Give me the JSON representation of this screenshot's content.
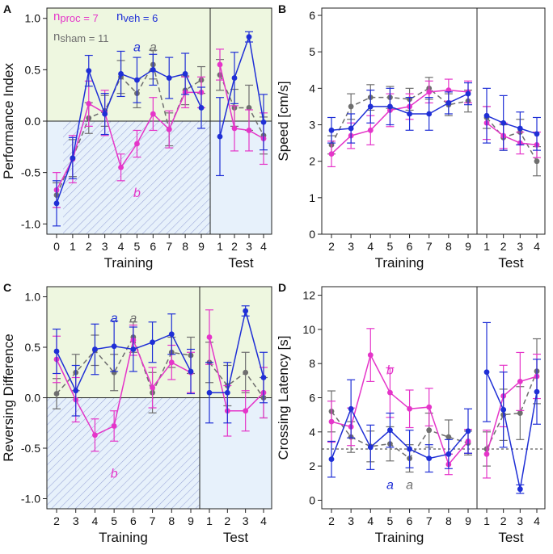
{
  "colors": {
    "proc": "#e535c9",
    "veh": "#1f2fd6",
    "sham": "#6e6e6e",
    "green_bg": "#eef7e0",
    "blue_bg": "#e7f1fb",
    "hatch": "#9aa6d8",
    "axis": "#222222"
  },
  "chart_data": [
    {
      "panel": "A",
      "type": "line",
      "ylabel": "Performance Index",
      "xlabel_training": "Training",
      "xlabel_test": "Test",
      "ylim": [
        -1.1,
        1.1
      ],
      "yticks": [
        -1.0,
        -0.5,
        0.0,
        0.5,
        1.0
      ],
      "ytick_labels": [
        "-1.0",
        "-0.5",
        "0.0",
        "0.5",
        "1.0"
      ],
      "training_x": [
        "0",
        "1",
        "2",
        "3",
        "4",
        "5",
        "6",
        "7",
        "8",
        "9"
      ],
      "test_x": [
        "1",
        "2",
        "3",
        "4"
      ],
      "legend": {
        "proc_prefix": "n",
        "proc": "proc = 7",
        "veh_prefix": "n",
        "veh": "veh = 6",
        "sham_prefix": "n",
        "sham": "sham = 11"
      },
      "annotations": [
        {
          "text": "a",
          "series": "veh",
          "col": 5,
          "value": 0.72
        },
        {
          "text": "a",
          "series": "sham",
          "col": 6,
          "value": 0.72
        },
        {
          "text": "b",
          "series": "proc",
          "col": 5,
          "value": -0.7
        }
      ],
      "shading": "performance",
      "series": [
        {
          "name": "proc",
          "style": "solid",
          "training": [
            -0.67,
            -0.37,
            0.17,
            0.08,
            -0.45,
            -0.22,
            0.07,
            -0.08,
            0.28,
            0.28
          ],
          "training_err": [
            0.17,
            0.23,
            0.22,
            0.22,
            0.13,
            0.13,
            0.16,
            0.18,
            0.15,
            0.15
          ],
          "test": [
            0.55,
            -0.07,
            -0.09,
            -0.17
          ],
          "test_err": [
            0.15,
            0.22,
            0.2,
            0.25
          ]
        },
        {
          "name": "veh",
          "style": "solid",
          "training": [
            -0.8,
            -0.36,
            0.49,
            0.07,
            0.46,
            0.4,
            0.5,
            0.42,
            0.46,
            0.13
          ],
          "training_err": [
            0.22,
            0.2,
            0.15,
            0.2,
            0.22,
            0.22,
            0.15,
            0.2,
            0.2,
            0.2
          ],
          "test": [
            -0.15,
            0.42,
            0.82,
            -0.01
          ],
          "test_err": [
            0.38,
            0.25,
            0.05,
            0.27
          ]
        },
        {
          "name": "sham",
          "style": "dashed",
          "training": [
            -0.72,
            -0.36,
            0.03,
            0.1,
            0.43,
            0.27,
            0.55,
            -0.08,
            0.3,
            0.4
          ],
          "training_err": [
            0.12,
            0.18,
            0.15,
            0.15,
            0.16,
            0.14,
            0.14,
            0.16,
            0.14,
            0.13
          ],
          "test": [
            0.45,
            0.13,
            0.13,
            -0.14
          ],
          "test_err": [
            0.15,
            0.18,
            0.22,
            0.18
          ]
        }
      ]
    },
    {
      "panel": "B",
      "type": "line",
      "ylabel": "Speed [cm/s]",
      "xlabel_training": "Training",
      "xlabel_test": "Test",
      "ylim": [
        0,
        6.2
      ],
      "yticks": [
        0,
        1,
        2,
        3,
        4,
        5,
        6
      ],
      "ytick_labels": [
        "0",
        "1",
        "2",
        "3",
        "4",
        "5",
        "6"
      ],
      "training_x": [
        "2",
        "3",
        "4",
        "5",
        "6",
        "7",
        "8",
        "9"
      ],
      "test_x": [
        "1",
        "2",
        "3",
        "4"
      ],
      "annotations": [],
      "shading": "none",
      "series": [
        {
          "name": "proc",
          "style": "solid",
          "training": [
            2.2,
            2.7,
            2.85,
            3.4,
            3.5,
            3.9,
            3.95,
            3.9
          ],
          "training_err": [
            0.35,
            0.35,
            0.4,
            0.45,
            0.35,
            0.3,
            0.3,
            0.3
          ],
          "test": [
            3.05,
            2.7,
            2.5,
            2.45
          ],
          "test_err": [
            0.45,
            0.35,
            0.3,
            0.35
          ]
        },
        {
          "name": "veh",
          "style": "solid",
          "training": [
            2.85,
            2.9,
            3.5,
            3.5,
            3.3,
            3.3,
            3.6,
            3.85
          ],
          "training_err": [
            0.35,
            0.4,
            0.45,
            0.5,
            0.45,
            0.45,
            0.3,
            0.3
          ],
          "test": [
            3.25,
            3.05,
            2.9,
            2.75
          ],
          "test_err": [
            0.75,
            0.75,
            0.45,
            0.45
          ]
        },
        {
          "name": "sham",
          "style": "dashed",
          "training": [
            2.45,
            3.5,
            3.75,
            3.75,
            3.7,
            4.0,
            3.55,
            3.65
          ],
          "training_err": [
            0.25,
            0.35,
            0.35,
            0.3,
            0.3,
            0.3,
            0.3,
            0.3
          ],
          "test": [
            3.2,
            2.65,
            2.8,
            2.0
          ],
          "test_err": [
            0.3,
            0.35,
            0.35,
            0.4
          ]
        }
      ]
    },
    {
      "panel": "C",
      "type": "line",
      "ylabel": "Reversing Difference",
      "xlabel_training": "Training",
      "xlabel_test": "Test",
      "ylim": [
        -1.1,
        1.1
      ],
      "yticks": [
        -1.0,
        -0.5,
        0.0,
        0.5,
        1.0
      ],
      "ytick_labels": [
        "-1.0",
        "-0.5",
        "0.0",
        "0.5",
        "1.0"
      ],
      "training_x": [
        "2",
        "3",
        "4",
        "5",
        "6",
        "7",
        "8",
        "9"
      ],
      "test_x": [
        "1",
        "2",
        "3",
        "4"
      ],
      "annotations": [
        {
          "text": "a",
          "series": "veh",
          "col": 3,
          "value": 0.79
        },
        {
          "text": "a",
          "series": "sham",
          "col": 4,
          "value": 0.79
        },
        {
          "text": "b",
          "series": "proc",
          "col": 3,
          "value": -0.75
        }
      ],
      "shading": "reversing",
      "series": [
        {
          "name": "proc",
          "style": "solid",
          "training": [
            0.38,
            -0.02,
            -0.37,
            -0.28,
            0.57,
            0.1,
            0.35,
            0.25
          ],
          "training_err": [
            0.23,
            0.22,
            0.16,
            0.15,
            0.15,
            0.2,
            0.17,
            0.2
          ],
          "test": [
            0.6,
            -0.13,
            -0.13,
            0.05
          ],
          "test_err": [
            0.27,
            0.25,
            0.2,
            0.25
          ]
        },
        {
          "name": "veh",
          "style": "solid",
          "training": [
            0.46,
            0.07,
            0.48,
            0.51,
            0.48,
            0.55,
            0.63,
            0.26
          ],
          "training_err": [
            0.22,
            0.25,
            0.25,
            0.25,
            0.22,
            0.2,
            0.2,
            0.22
          ],
          "test": [
            0.05,
            0.05,
            0.86,
            0.2
          ],
          "test_err": [
            0.3,
            0.3,
            0.05,
            0.25
          ]
        },
        {
          "name": "sham",
          "style": "dashed",
          "training": [
            0.04,
            0.25,
            0.47,
            0.25,
            0.6,
            0.05,
            0.45,
            0.42
          ],
          "training_err": [
            0.15,
            0.18,
            0.15,
            0.18,
            0.15,
            0.2,
            0.15,
            0.18
          ],
          "test": [
            0.35,
            0.12,
            0.25,
            0.0
          ],
          "test_err": [
            0.2,
            0.2,
            0.2,
            0.2
          ]
        }
      ]
    },
    {
      "panel": "D",
      "type": "line",
      "ylabel": "Crossing Latency [s]",
      "xlabel_training": "Training",
      "xlabel_test": "Test",
      "ylim": [
        -0.5,
        12.5
      ],
      "yticks": [
        0,
        2,
        4,
        6,
        8,
        10,
        12
      ],
      "ytick_labels": [
        "0",
        "2",
        "4",
        "6",
        "8",
        "10",
        "12"
      ],
      "training_x": [
        "2",
        "3",
        "4",
        "5",
        "6",
        "7",
        "8",
        "9"
      ],
      "test_x": [
        "1",
        "2",
        "3",
        "4"
      ],
      "reference_line": 3.0,
      "annotations": [
        {
          "text": "b",
          "series": "proc",
          "col": 3,
          "value": 7.6
        },
        {
          "text": "a",
          "series": "veh",
          "col": 3,
          "value": 0.9
        },
        {
          "text": "a",
          "series": "sham",
          "col": 4,
          "value": 0.9
        }
      ],
      "shading": "none",
      "series": [
        {
          "name": "proc",
          "style": "solid",
          "training": [
            4.6,
            4.3,
            8.5,
            6.3,
            5.35,
            5.45,
            2.1,
            3.45
          ],
          "training_err": [
            1.2,
            1.1,
            1.55,
            1.45,
            1.1,
            1.1,
            0.6,
            0.7
          ],
          "test": [
            2.7,
            6.1,
            6.95,
            7.25
          ],
          "test_err": [
            1.4,
            1.8,
            1.7,
            1.3
          ]
        },
        {
          "name": "veh",
          "style": "solid",
          "training": [
            2.4,
            5.35,
            3.1,
            4.1,
            3.0,
            2.45,
            2.7,
            4.05
          ],
          "training_err": [
            1.05,
            1.7,
            1.3,
            1.0,
            1.1,
            0.8,
            0.85,
            1.3
          ],
          "test": [
            7.5,
            5.3,
            0.65,
            6.35
          ],
          "test_err": [
            2.9,
            2.2,
            0.25,
            1.9
          ]
        },
        {
          "name": "sham",
          "style": "dashed",
          "training": [
            5.2,
            3.7,
            3.15,
            3.3,
            2.45,
            4.1,
            3.7,
            3.35
          ],
          "training_err": [
            1.2,
            0.9,
            0.9,
            1.0,
            0.8,
            1.0,
            1.0,
            0.7
          ],
          "test": [
            3.0,
            5.0,
            5.1,
            7.55
          ],
          "test_err": [
            1.0,
            1.5,
            1.55,
            1.9
          ]
        }
      ]
    }
  ]
}
